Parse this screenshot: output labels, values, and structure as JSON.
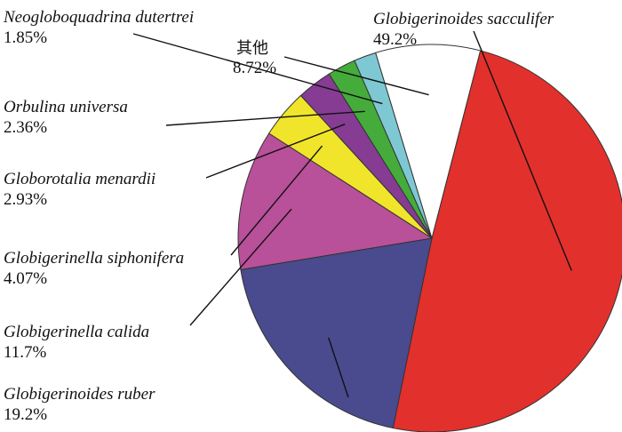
{
  "chart_data": {
    "type": "pie",
    "title": "",
    "slices": [
      {
        "name": "Globigerinoides sacculifer",
        "value": 49.2,
        "label": "49.2%",
        "color": "#e2302c"
      },
      {
        "name": "Globigerinoides ruber",
        "value": 19.2,
        "label": "19.2%",
        "color": "#4a4a8e"
      },
      {
        "name": "Globigerinella calida",
        "value": 11.7,
        "label": "11.7%",
        "color": "#b9509a"
      },
      {
        "name": "Globigerinella siphonifera",
        "value": 4.07,
        "label": "4.07%",
        "color": "#f0e52a"
      },
      {
        "name": "Globorotalia menardii",
        "value": 2.93,
        "label": "2.93%",
        "color": "#853c92"
      },
      {
        "name": "Orbulina universa",
        "value": 2.36,
        "label": "2.36%",
        "color": "#45ac3c"
      },
      {
        "name": "Neogloboquadrina dutertrei",
        "value": 1.85,
        "label": "1.85%",
        "color": "#7ec8d3"
      },
      {
        "name": "其他",
        "value": 8.72,
        "label": "8.72%",
        "color": "#ffffff"
      }
    ]
  }
}
